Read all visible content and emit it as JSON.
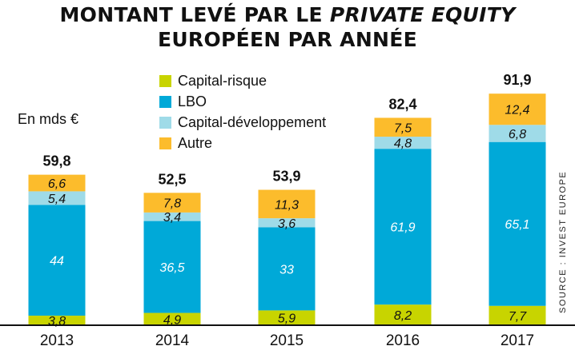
{
  "title": {
    "line1_prefix": "MONTANT LEVÉ PAR LE ",
    "line1_emph": "PRIVATE EQUITY",
    "line2": "EUROPÉEN PAR ANNÉE"
  },
  "unit_label": "En mds €",
  "source": "SOURCE : INVEST EUROPE",
  "colors": {
    "capital_risque": "#c8d400",
    "lbo": "#00a9d8",
    "capital_developpement": "#9fdbe8",
    "autre": "#fcbc2c",
    "axis": "#111111"
  },
  "chart_data": {
    "type": "bar",
    "stacked": true,
    "title": "MONTANT LEVÉ PAR LE PRIVATE EQUITY EUROPÉEN PAR ANNÉE",
    "ylabel": "En mds €",
    "xlabel": "",
    "categories": [
      "2013",
      "2014",
      "2015",
      "2016",
      "2017"
    ],
    "series": [
      {
        "name": "Capital-risque",
        "values": [
          3.8,
          4.9,
          5.9,
          8.2,
          7.7
        ],
        "labels": [
          "3,8",
          "4,9",
          "5,9",
          "8,2",
          "7,7"
        ]
      },
      {
        "name": "LBO",
        "values": [
          44,
          36.5,
          33,
          61.9,
          65.1
        ],
        "labels": [
          "44",
          "36,5",
          "33",
          "61,9",
          "65,1"
        ]
      },
      {
        "name": "Capital-développement",
        "values": [
          5.4,
          3.4,
          3.6,
          4.8,
          6.8
        ],
        "labels": [
          "5,4",
          "3,4",
          "3,6",
          "4,8",
          "6,8"
        ]
      },
      {
        "name": "Autre",
        "values": [
          6.6,
          7.8,
          11.3,
          7.5,
          12.4
        ],
        "labels": [
          "6,6",
          "7,8",
          "11,3",
          "7,5",
          "12,4"
        ]
      }
    ],
    "totals": [
      59.8,
      52.5,
      53.9,
      82.4,
      91.9
    ],
    "total_labels": [
      "59,8",
      "52,5",
      "53,9",
      "82,4",
      "91,9"
    ],
    "ylim": [
      0,
      92
    ],
    "grid": false,
    "legend_position": "top-center"
  }
}
